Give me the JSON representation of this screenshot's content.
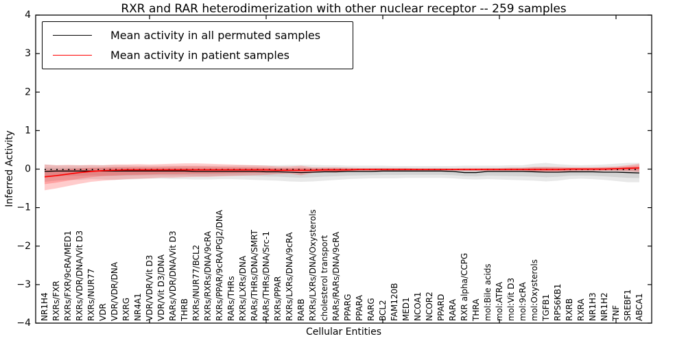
{
  "figure": {
    "title": "RXR and RAR heterodimerization with other nuclear receptor -- 259 samples",
    "sample_count": 259
  },
  "chart_data": {
    "type": "line",
    "title": "RXR and RAR heterodimerization with other nuclear receptor -- 259 samples",
    "xlabel": "Cellular Entities",
    "ylabel": "Inferred Activity",
    "ylim": [
      -4,
      4
    ],
    "yticks": [
      -4,
      -3,
      -2,
      -1,
      0,
      1,
      2,
      3,
      4
    ],
    "xtick_positions": [
      9,
      19,
      29,
      39,
      49
    ],
    "grid": false,
    "legend_position": "upper left",
    "zero_reference_line": {
      "style": "dotted",
      "y": 0,
      "color": "#000000"
    },
    "categories": [
      "NR1H4",
      "RXRs/FXR",
      "RXRs/FXR/9cRA/MED1",
      "RXRs/VDR/DNA/Vit D3",
      "RXRs/NUR77",
      "VDR",
      "VDR/VDR/DNA",
      "RXRG",
      "NR4A1",
      "VDR/VDR/Vit D3",
      "VDR/Vit D3/DNA",
      "RARs/VDR/DNA/Vit D3",
      "THRB",
      "RXRs/NUR77/BCL2",
      "RXRs/RXRs/DNA/9cRA",
      "RXRs/PPAR/9cRA/PGJ2/DNA",
      "RARs/THRs",
      "RXRs/LXRs/DNA",
      "RARs/THRs/DNA/SMRT",
      "RARs/THRs/DNA/Src-1",
      "RXRs/PPAR",
      "RXRs/LXRs/DNA/9cRA",
      "RARB",
      "RXRs/LXRs/DNA/Oxysterols",
      "cholesterol transport",
      "RARs/RARs/DNA/9cRA",
      "PPARG",
      "PPARA",
      "RARG",
      "BCL2",
      "FAM120B",
      "MED1",
      "NCOA1",
      "NCOR2",
      "PPARD",
      "RARA",
      "RXR alpha/CCPG",
      "THRA",
      "mol:Bile acids",
      "mol:ATRA",
      "mol:Vit D3",
      "mol:9cRA",
      "mol:Oxysterols",
      "TGFB1",
      "RPS6KB1",
      "RXRB",
      "RXRA",
      "NR1H3",
      "NR1H2",
      "TNF",
      "SREBF1",
      "ABCA1"
    ],
    "series": [
      {
        "name": "Mean activity in all permuted samples",
        "color": "#000000",
        "style": "solid",
        "band_color": "rgba(0,0,0,0.09)",
        "values": [
          -0.06,
          -0.05,
          -0.05,
          -0.05,
          -0.05,
          -0.05,
          -0.05,
          -0.05,
          -0.05,
          -0.05,
          -0.05,
          -0.05,
          -0.05,
          -0.06,
          -0.06,
          -0.06,
          -0.06,
          -0.06,
          -0.06,
          -0.07,
          -0.07,
          -0.08,
          -0.09,
          -0.08,
          -0.07,
          -0.07,
          -0.06,
          -0.06,
          -0.06,
          -0.05,
          -0.05,
          -0.05,
          -0.05,
          -0.05,
          -0.05,
          -0.06,
          -0.09,
          -0.09,
          -0.06,
          -0.06,
          -0.06,
          -0.06,
          -0.07,
          -0.08,
          -0.08,
          -0.07,
          -0.07,
          -0.07,
          -0.08,
          -0.08,
          -0.09,
          -0.1
        ],
        "band_lo": [
          -0.33,
          -0.3,
          -0.28,
          -0.28,
          -0.26,
          -0.27,
          -0.28,
          -0.27,
          -0.26,
          -0.25,
          -0.25,
          -0.26,
          -0.26,
          -0.27,
          -0.27,
          -0.26,
          -0.26,
          -0.27,
          -0.28,
          -0.29,
          -0.3,
          -0.32,
          -0.33,
          -0.32,
          -0.3,
          -0.28,
          -0.26,
          -0.25,
          -0.24,
          -0.24,
          -0.24,
          -0.23,
          -0.23,
          -0.23,
          -0.23,
          -0.24,
          -0.26,
          -0.27,
          -0.26,
          -0.27,
          -0.28,
          -0.29,
          -0.3,
          -0.32,
          -0.3,
          -0.26,
          -0.25,
          -0.26,
          -0.28,
          -0.31,
          -0.34,
          -0.34
        ],
        "band_hi": [
          0.12,
          0.1,
          0.1,
          0.1,
          0.1,
          0.1,
          0.1,
          0.1,
          0.09,
          0.09,
          0.09,
          0.09,
          0.09,
          0.09,
          0.09,
          0.09,
          0.09,
          0.1,
          0.1,
          0.1,
          0.1,
          0.11,
          0.11,
          0.11,
          0.1,
          0.1,
          0.09,
          0.09,
          0.09,
          0.09,
          0.08,
          0.08,
          0.08,
          0.08,
          0.08,
          0.08,
          0.09,
          0.09,
          0.09,
          0.09,
          0.1,
          0.1,
          0.14,
          0.16,
          0.13,
          0.11,
          0.1,
          0.11,
          0.12,
          0.14,
          0.16,
          0.16
        ]
      },
      {
        "name": "Mean activity in patient samples",
        "color": "#ff0000",
        "style": "solid",
        "band_color": "rgba(255,0,0,0.20)",
        "values": [
          -0.2,
          -0.17,
          -0.13,
          -0.09,
          -0.06,
          -0.04,
          -0.03,
          -0.02,
          -0.02,
          -0.02,
          -0.02,
          -0.02,
          -0.02,
          -0.02,
          -0.02,
          -0.02,
          -0.02,
          -0.02,
          -0.02,
          -0.02,
          -0.03,
          -0.03,
          -0.03,
          -0.03,
          -0.02,
          -0.02,
          -0.02,
          -0.01,
          -0.01,
          -0.01,
          -0.01,
          -0.01,
          -0.01,
          -0.01,
          -0.01,
          -0.01,
          -0.01,
          -0.01,
          -0.01,
          -0.01,
          -0.01,
          -0.01,
          -0.01,
          -0.01,
          -0.01,
          0.0,
          0.0,
          0.0,
          0.0,
          0.01,
          0.02,
          0.03
        ],
        "band_lo": [
          -0.55,
          -0.5,
          -0.44,
          -0.38,
          -0.33,
          -0.3,
          -0.28,
          -0.26,
          -0.25,
          -0.24,
          -0.22,
          -0.22,
          -0.21,
          -0.2,
          -0.2,
          -0.19,
          -0.18,
          -0.17,
          -0.16,
          -0.15,
          -0.13,
          -0.12,
          -0.16,
          -0.1,
          -0.08,
          -0.09,
          -0.06,
          -0.05,
          -0.05,
          -0.05,
          -0.05,
          -0.04,
          -0.04,
          -0.04,
          -0.04,
          -0.04,
          -0.05,
          -0.05,
          -0.05,
          -0.05,
          -0.05,
          -0.05,
          -0.08,
          -0.09,
          -0.08,
          -0.06,
          -0.05,
          -0.05,
          -0.05,
          -0.05,
          -0.06,
          -0.08
        ],
        "band_hi": [
          0.12,
          0.1,
          0.11,
          0.1,
          0.11,
          0.1,
          0.12,
          0.12,
          0.13,
          0.12,
          0.13,
          0.14,
          0.15,
          0.15,
          0.14,
          0.13,
          0.12,
          0.11,
          0.1,
          0.09,
          0.07,
          0.07,
          0.09,
          0.05,
          0.05,
          0.05,
          0.04,
          0.03,
          0.03,
          0.03,
          0.03,
          0.03,
          0.02,
          0.02,
          0.02,
          0.02,
          0.03,
          0.03,
          0.03,
          0.03,
          0.04,
          0.04,
          0.06,
          0.06,
          0.06,
          0.05,
          0.05,
          0.05,
          0.06,
          0.07,
          0.1,
          0.14
        ]
      }
    ]
  }
}
